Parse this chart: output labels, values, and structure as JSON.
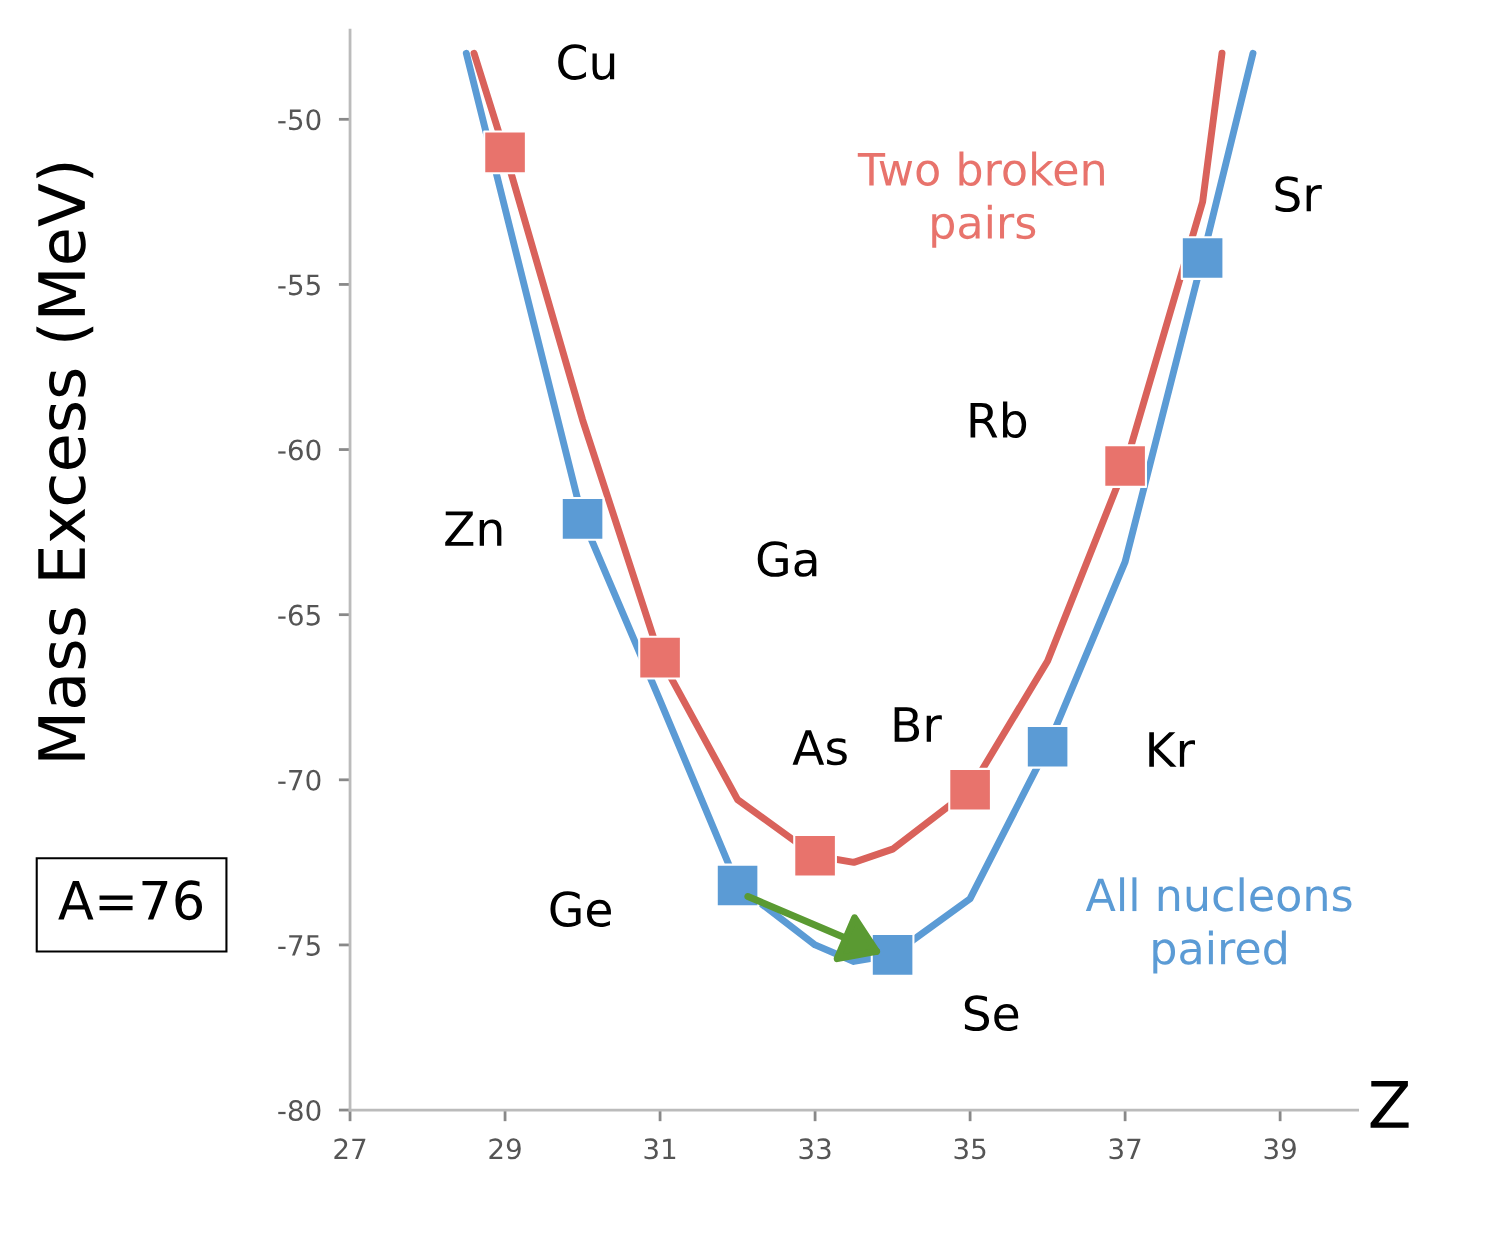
{
  "chart_data": {
    "type": "scatter",
    "xlabel": "Z",
    "ylabel": "Mass Excess (MeV)",
    "xlim": [
      27,
      40
    ],
    "xticks": [
      27,
      29,
      31,
      33,
      35,
      37,
      39
    ],
    "ylim": [
      -80,
      -47.3
    ],
    "yticks": [
      -80,
      -75,
      -70,
      -65,
      -60,
      -55,
      -50
    ],
    "marker": "square",
    "grid": false,
    "legend": false,
    "series": [
      {
        "type": "line",
        "marker": "none",
        "color": "#5b9bd5",
        "x": [
          28.5,
          30,
          31,
          32,
          33,
          33.5,
          34,
          35,
          36,
          37,
          38,
          38.65
        ],
        "values": [
          -48.0,
          -62.1,
          -67.6,
          -73.2,
          -75.0,
          -75.5,
          -75.3,
          -73.6,
          -69.0,
          -63.4,
          -54.2,
          -48.0
        ]
      },
      {
        "type": "line",
        "marker": "none",
        "color": "#d9625b",
        "x": [
          28.6,
          29,
          30,
          31,
          32,
          33,
          33.5,
          34,
          35,
          36,
          37,
          38,
          38.25
        ],
        "values": [
          -48.0,
          -51.0,
          -59.1,
          -66.3,
          -70.6,
          -72.3,
          -72.5,
          -72.1,
          -70.3,
          -66.4,
          -60.5,
          -52.5,
          -48.0
        ]
      },
      {
        "name": "All nucleons paired",
        "color": "#5b9bd5",
        "x": [
          30,
          32,
          34,
          36,
          38
        ],
        "values": [
          -62.1,
          -73.2,
          -75.3,
          -69.0,
          -54.2
        ]
      },
      {
        "name": "Two broken pairs",
        "color": "#e8736c",
        "x": [
          29,
          31,
          33,
          35,
          37
        ],
        "values": [
          -51.0,
          -66.3,
          -72.3,
          -70.3,
          -60.5
        ]
      }
    ],
    "annotations": [
      {
        "text": "Cu",
        "x": 29,
        "y": -51.0
      },
      {
        "text": "Zn",
        "x": 30,
        "y": -62.1
      },
      {
        "text": "Ga",
        "x": 31,
        "y": -66.3
      },
      {
        "text": "Ge",
        "x": 32,
        "y": -73.2
      },
      {
        "text": "As",
        "x": 33,
        "y": -72.3
      },
      {
        "text": "Se",
        "x": 34,
        "y": -75.3
      },
      {
        "text": "Br",
        "x": 35,
        "y": -70.3
      },
      {
        "text": "Kr",
        "x": 36,
        "y": -69.0
      },
      {
        "text": "Rb",
        "x": 37,
        "y": -60.5
      },
      {
        "text": "Sr",
        "x": 38,
        "y": -54.2
      },
      "A=76"
    ]
  }
}
